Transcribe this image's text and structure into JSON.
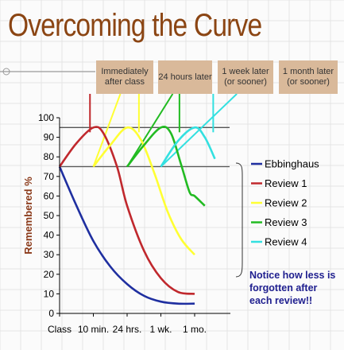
{
  "title": "Overcoming the Curve",
  "banners": [
    {
      "text": "Immediately after class",
      "color": "#c0282d"
    },
    {
      "text": "24 hours later",
      "color": "#ffff33"
    },
    {
      "text": "1 week later (or sooner)",
      "color": "#22bb22"
    },
    {
      "text": "1 month later (or sooner)",
      "color": "#33e0e0"
    }
  ],
  "notice": "Notice how less is forgotten after each review!!",
  "chart_data": {
    "type": "line",
    "ylabel": "Remembered %",
    "xlabel": "",
    "categories": [
      "Class",
      "10 min.",
      "24 hrs.",
      "1 wk.",
      "1 mo."
    ],
    "yticks": [
      0,
      10,
      20,
      30,
      40,
      50,
      60,
      70,
      80,
      90,
      100
    ],
    "ylim": [
      0,
      100
    ],
    "reference_lines": [
      75,
      95
    ],
    "legend_position": "right",
    "series": [
      {
        "name": "Ebbinghaus",
        "color": "#1f2fa0",
        "points": [
          [
            0,
            75
          ],
          [
            0.5,
            55
          ],
          [
            1,
            37
          ],
          [
            1.5,
            24
          ],
          [
            2,
            15
          ],
          [
            2.5,
            9
          ],
          [
            3,
            6
          ],
          [
            3.5,
            5
          ],
          [
            4,
            5
          ]
        ]
      },
      {
        "name": "Review 1",
        "color": "#c0282d",
        "points": [
          [
            0,
            75
          ],
          [
            0.5,
            87
          ],
          [
            1,
            95
          ],
          [
            1.3,
            92
          ],
          [
            1.7,
            75
          ],
          [
            2,
            55
          ],
          [
            2.5,
            32
          ],
          [
            3,
            18
          ],
          [
            3.5,
            11
          ],
          [
            4,
            10
          ]
        ]
      },
      {
        "name": "Review 2",
        "color": "#ffff33",
        "points": [
          [
            1,
            75
          ],
          [
            1.5,
            86
          ],
          [
            2,
            95
          ],
          [
            2.4,
            89
          ],
          [
            2.8,
            72
          ],
          [
            3.2,
            52
          ],
          [
            3.6,
            38
          ],
          [
            4,
            30
          ]
        ]
      },
      {
        "name": "Review 3",
        "color": "#22bb22",
        "points": [
          [
            2,
            75
          ],
          [
            2.5,
            86
          ],
          [
            3,
            95
          ],
          [
            3.3,
            92
          ],
          [
            3.6,
            76
          ],
          [
            3.85,
            62
          ],
          [
            4,
            60
          ],
          [
            4.3,
            55
          ]
        ]
      },
      {
        "name": "Review 4",
        "color": "#33e0e0",
        "points": [
          [
            3,
            75
          ],
          [
            3.5,
            88
          ],
          [
            4,
            95
          ],
          [
            4.3,
            90
          ],
          [
            4.6,
            79
          ]
        ]
      }
    ],
    "review_markers": [
      {
        "series": "Review 1",
        "x": 0.9
      },
      {
        "series": "Review 2",
        "x": 2.35
      },
      {
        "series": "Review 3",
        "x": 3.55
      },
      {
        "series": "Review 4",
        "x": 4.55
      }
    ]
  }
}
